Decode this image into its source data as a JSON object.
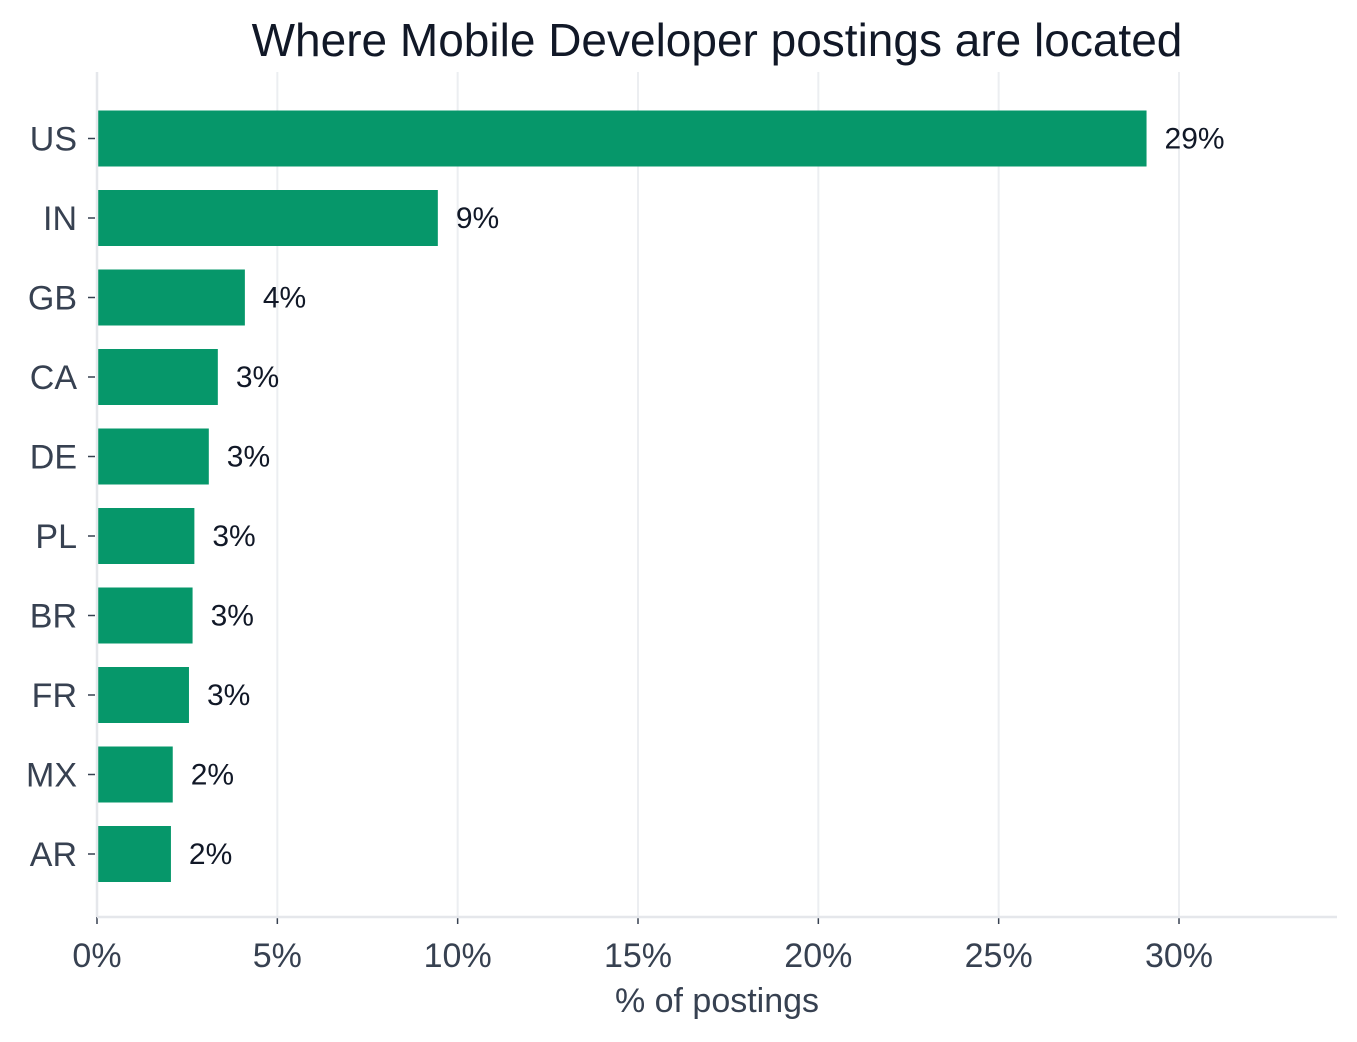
{
  "chart_data": {
    "type": "bar",
    "orientation": "horizontal",
    "title": "Where Mobile Developer postings are located",
    "xlabel": "% of postings",
    "ylabel": "",
    "categories": [
      "US",
      "IN",
      "GB",
      "CA",
      "DE",
      "PL",
      "BR",
      "FR",
      "MX",
      "AR"
    ],
    "values": [
      29.1,
      9.45,
      4.1,
      3.35,
      3.1,
      2.7,
      2.65,
      2.55,
      2.1,
      2.05
    ],
    "data_labels": [
      "29%",
      "9%",
      "4%",
      "3%",
      "3%",
      "3%",
      "3%",
      "3%",
      "2%",
      "2%"
    ],
    "xlim": [
      0,
      34.4
    ],
    "xticks": [
      0,
      5,
      10,
      15,
      20,
      25,
      30
    ],
    "xtick_labels": [
      "0%",
      "5%",
      "10%",
      "15%",
      "20%",
      "25%",
      "30%"
    ],
    "grid": true,
    "bar_color": "#06976a"
  }
}
